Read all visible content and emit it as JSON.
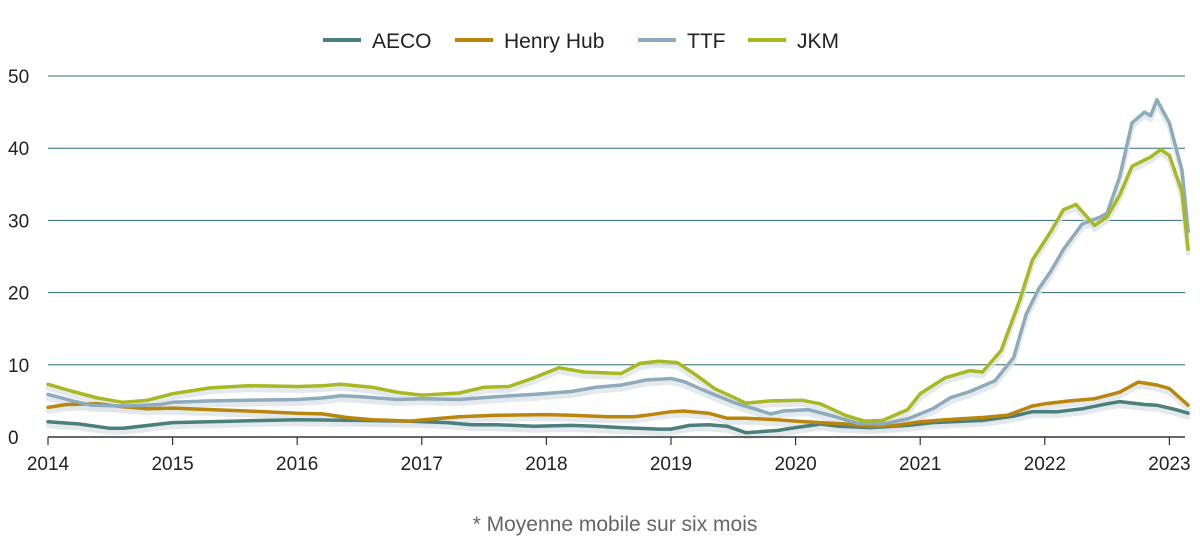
{
  "chart_data": {
    "type": "line",
    "title": "",
    "xlabel": "",
    "ylabel": "",
    "ylim": [
      0,
      50
    ],
    "yticks": [
      0,
      10,
      20,
      30,
      40,
      50
    ],
    "xlim": [
      2014,
      2023.15
    ],
    "xticks": [
      "2014",
      "2015",
      "2016",
      "2017",
      "2018",
      "2019",
      "2020",
      "2021",
      "2022",
      "2023"
    ],
    "grid": "horizontal",
    "legend_position": "top",
    "note": "* Moyenne mobile sur six mois",
    "series": [
      {
        "name": "AECO",
        "color": "#4a7f7c",
        "points": [
          [
            2014.0,
            2.1
          ],
          [
            2014.25,
            1.8
          ],
          [
            2014.5,
            1.2
          ],
          [
            2014.6,
            1.2
          ],
          [
            2014.85,
            1.7
          ],
          [
            2015.0,
            2.0
          ],
          [
            2015.5,
            2.2
          ],
          [
            2016.0,
            2.4
          ],
          [
            2016.5,
            2.3
          ],
          [
            2016.9,
            2.2
          ],
          [
            2017.2,
            2.0
          ],
          [
            2017.4,
            1.7
          ],
          [
            2017.6,
            1.7
          ],
          [
            2017.9,
            1.5
          ],
          [
            2018.2,
            1.6
          ],
          [
            2018.4,
            1.5
          ],
          [
            2018.6,
            1.3
          ],
          [
            2018.9,
            1.1
          ],
          [
            2019.0,
            1.1
          ],
          [
            2019.15,
            1.6
          ],
          [
            2019.3,
            1.7
          ],
          [
            2019.45,
            1.5
          ],
          [
            2019.6,
            0.6
          ],
          [
            2019.85,
            0.9
          ],
          [
            2020.0,
            1.3
          ],
          [
            2020.2,
            1.8
          ],
          [
            2020.35,
            1.5
          ],
          [
            2020.6,
            1.3
          ],
          [
            2020.9,
            1.6
          ],
          [
            2021.1,
            2.0
          ],
          [
            2021.5,
            2.3
          ],
          [
            2021.75,
            2.9
          ],
          [
            2021.9,
            3.5
          ],
          [
            2022.1,
            3.5
          ],
          [
            2022.3,
            3.9
          ],
          [
            2022.5,
            4.6
          ],
          [
            2022.6,
            4.9
          ],
          [
            2022.8,
            4.5
          ],
          [
            2022.9,
            4.4
          ],
          [
            2023.05,
            3.8
          ],
          [
            2023.15,
            3.3
          ]
        ]
      },
      {
        "name": "Henry Hub",
        "color": "#b8860b",
        "points": [
          [
            2014.0,
            4.1
          ],
          [
            2014.15,
            4.5
          ],
          [
            2014.4,
            4.6
          ],
          [
            2014.6,
            4.2
          ],
          [
            2014.8,
            3.9
          ],
          [
            2015.0,
            4.0
          ],
          [
            2015.3,
            3.8
          ],
          [
            2015.6,
            3.6
          ],
          [
            2016.0,
            3.3
          ],
          [
            2016.2,
            3.2
          ],
          [
            2016.4,
            2.7
          ],
          [
            2016.6,
            2.4
          ],
          [
            2016.9,
            2.2
          ],
          [
            2017.1,
            2.5
          ],
          [
            2017.3,
            2.8
          ],
          [
            2017.6,
            3.0
          ],
          [
            2018.0,
            3.1
          ],
          [
            2018.2,
            3.0
          ],
          [
            2018.5,
            2.8
          ],
          [
            2018.7,
            2.8
          ],
          [
            2018.8,
            3.0
          ],
          [
            2019.0,
            3.5
          ],
          [
            2019.1,
            3.6
          ],
          [
            2019.3,
            3.3
          ],
          [
            2019.45,
            2.6
          ],
          [
            2019.6,
            2.6
          ],
          [
            2019.85,
            2.4
          ],
          [
            2020.0,
            2.2
          ],
          [
            2020.2,
            2.0
          ],
          [
            2020.4,
            1.8
          ],
          [
            2020.6,
            1.5
          ],
          [
            2020.8,
            1.6
          ],
          [
            2021.0,
            2.1
          ],
          [
            2021.2,
            2.4
          ],
          [
            2021.5,
            2.7
          ],
          [
            2021.7,
            3.0
          ],
          [
            2021.9,
            4.3
          ],
          [
            2022.0,
            4.6
          ],
          [
            2022.2,
            5.0
          ],
          [
            2022.4,
            5.3
          ],
          [
            2022.6,
            6.2
          ],
          [
            2022.75,
            7.6
          ],
          [
            2022.9,
            7.2
          ],
          [
            2023.0,
            6.7
          ],
          [
            2023.15,
            4.4
          ]
        ]
      },
      {
        "name": "TTF",
        "color": "#8eabbb",
        "points": [
          [
            2014.0,
            5.9
          ],
          [
            2014.2,
            5.0
          ],
          [
            2014.35,
            4.4
          ],
          [
            2014.6,
            4.3
          ],
          [
            2014.9,
            4.5
          ],
          [
            2015.0,
            4.8
          ],
          [
            2015.3,
            5.0
          ],
          [
            2015.6,
            5.1
          ],
          [
            2016.0,
            5.2
          ],
          [
            2016.2,
            5.4
          ],
          [
            2016.35,
            5.7
          ],
          [
            2016.5,
            5.6
          ],
          [
            2016.8,
            5.2
          ],
          [
            2017.0,
            5.3
          ],
          [
            2017.3,
            5.2
          ],
          [
            2017.6,
            5.6
          ],
          [
            2017.9,
            5.9
          ],
          [
            2018.2,
            6.3
          ],
          [
            2018.4,
            6.9
          ],
          [
            2018.6,
            7.2
          ],
          [
            2018.8,
            7.9
          ],
          [
            2019.0,
            8.1
          ],
          [
            2019.1,
            7.7
          ],
          [
            2019.3,
            6.2
          ],
          [
            2019.5,
            4.8
          ],
          [
            2019.8,
            3.2
          ],
          [
            2019.9,
            3.6
          ],
          [
            2020.1,
            3.8
          ],
          [
            2020.3,
            2.9
          ],
          [
            2020.5,
            1.9
          ],
          [
            2020.7,
            1.8
          ],
          [
            2020.9,
            2.5
          ],
          [
            2021.1,
            3.9
          ],
          [
            2021.25,
            5.5
          ],
          [
            2021.4,
            6.3
          ],
          [
            2021.6,
            7.8
          ],
          [
            2021.75,
            11.0
          ],
          [
            2021.85,
            17.0
          ],
          [
            2021.95,
            20.5
          ],
          [
            2022.05,
            23.0
          ],
          [
            2022.15,
            26.0
          ],
          [
            2022.3,
            29.5
          ],
          [
            2022.45,
            30.5
          ],
          [
            2022.5,
            31.0
          ],
          [
            2022.6,
            36.0
          ],
          [
            2022.7,
            43.5
          ],
          [
            2022.8,
            45.0
          ],
          [
            2022.85,
            44.5
          ],
          [
            2022.9,
            46.7
          ],
          [
            2023.0,
            43.5
          ],
          [
            2023.1,
            37.0
          ],
          [
            2023.15,
            28.5
          ]
        ]
      },
      {
        "name": "JKM",
        "color": "#a8b820",
        "points": [
          [
            2014.0,
            7.3
          ],
          [
            2014.2,
            6.3
          ],
          [
            2014.4,
            5.4
          ],
          [
            2014.6,
            4.8
          ],
          [
            2014.8,
            5.1
          ],
          [
            2015.0,
            6.0
          ],
          [
            2015.3,
            6.8
          ],
          [
            2015.6,
            7.1
          ],
          [
            2016.0,
            7.0
          ],
          [
            2016.2,
            7.1
          ],
          [
            2016.35,
            7.3
          ],
          [
            2016.6,
            6.9
          ],
          [
            2016.8,
            6.2
          ],
          [
            2017.0,
            5.8
          ],
          [
            2017.3,
            6.1
          ],
          [
            2017.5,
            6.9
          ],
          [
            2017.7,
            7.0
          ],
          [
            2017.9,
            8.2
          ],
          [
            2018.1,
            9.6
          ],
          [
            2018.3,
            9.0
          ],
          [
            2018.6,
            8.8
          ],
          [
            2018.75,
            10.2
          ],
          [
            2018.9,
            10.5
          ],
          [
            2019.05,
            10.3
          ],
          [
            2019.2,
            8.6
          ],
          [
            2019.35,
            6.7
          ],
          [
            2019.6,
            4.7
          ],
          [
            2019.8,
            5.0
          ],
          [
            2020.05,
            5.1
          ],
          [
            2020.2,
            4.6
          ],
          [
            2020.4,
            3.0
          ],
          [
            2020.55,
            2.2
          ],
          [
            2020.7,
            2.3
          ],
          [
            2020.9,
            3.8
          ],
          [
            2021.0,
            6.0
          ],
          [
            2021.2,
            8.2
          ],
          [
            2021.4,
            9.2
          ],
          [
            2021.5,
            9.0
          ],
          [
            2021.65,
            12.0
          ],
          [
            2021.8,
            19.0
          ],
          [
            2021.9,
            24.5
          ],
          [
            2022.05,
            28.5
          ],
          [
            2022.15,
            31.5
          ],
          [
            2022.25,
            32.2
          ],
          [
            2022.4,
            29.3
          ],
          [
            2022.5,
            30.5
          ],
          [
            2022.6,
            33.5
          ],
          [
            2022.7,
            37.5
          ],
          [
            2022.85,
            38.8
          ],
          [
            2022.93,
            39.8
          ],
          [
            2023.0,
            39.0
          ],
          [
            2023.1,
            34.0
          ],
          [
            2023.15,
            26.0
          ]
        ]
      }
    ]
  }
}
